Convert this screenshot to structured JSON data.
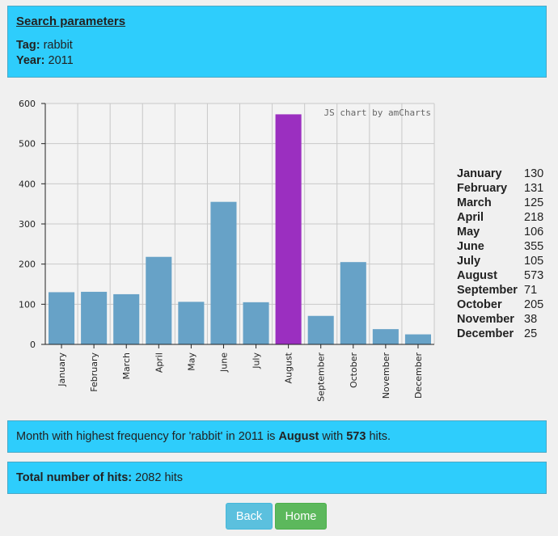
{
  "search": {
    "heading": "Search parameters",
    "tag_label": "Tag:",
    "tag_value": "rabbit",
    "year_label": "Year:",
    "year_value": "2011"
  },
  "chart_data": {
    "type": "bar",
    "categories": [
      "January",
      "February",
      "March",
      "April",
      "May",
      "June",
      "July",
      "August",
      "September",
      "October",
      "November",
      "December"
    ],
    "values": [
      130,
      131,
      125,
      218,
      106,
      355,
      105,
      573,
      71,
      205,
      38,
      25
    ],
    "highlight": "August",
    "ylim": [
      0,
      600
    ],
    "yticks": [
      0,
      100,
      200,
      300,
      400,
      500,
      600
    ],
    "grid": true,
    "bar_color": "#67a2c7",
    "highlight_color": "#9b2fc0",
    "credit": "JS chart by amCharts"
  },
  "table": [
    {
      "month": "January",
      "count": "130"
    },
    {
      "month": "February",
      "count": "131"
    },
    {
      "month": "March",
      "count": "125"
    },
    {
      "month": "April",
      "count": "218"
    },
    {
      "month": "May",
      "count": "106"
    },
    {
      "month": "June",
      "count": "355"
    },
    {
      "month": "July",
      "count": "105"
    },
    {
      "month": "August",
      "count": "573"
    },
    {
      "month": "September",
      "count": "71"
    },
    {
      "month": "October",
      "count": "205"
    },
    {
      "month": "November",
      "count": "38"
    },
    {
      "month": "December",
      "count": "25"
    }
  ],
  "summary": {
    "prefix": "Month with highest frequency for 'rabbit' in 2011 is ",
    "month": "August",
    "middle": " with ",
    "hits": "573",
    "suffix": " hits."
  },
  "total": {
    "label": "Total number of hits:",
    "value": " 2082 hits"
  },
  "buttons": {
    "back": "Back",
    "home": "Home"
  }
}
